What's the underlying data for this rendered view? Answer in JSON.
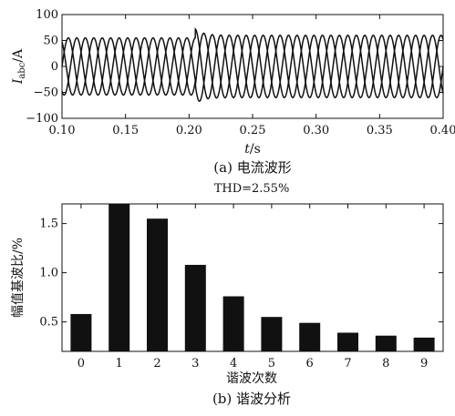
{
  "figure_a": {
    "caption": "(a) 电流波形",
    "ylabel_main": "I",
    "ylabel_sub": "abc",
    "ylabel_unit": "/A",
    "xlabel_main": "t",
    "xlabel_unit": "/s"
  },
  "figure_b": {
    "caption": "(b) 谐波分析",
    "thd_label": "THD=2.55%",
    "ylabel": "幅值基波比/%",
    "xlabel": "谐波次数"
  },
  "chart_data": [
    {
      "type": "line",
      "xlim": [
        0.1,
        0.4
      ],
      "ylim": [
        -100,
        100
      ],
      "xticks": [
        "0.10",
        "0.15",
        "0.20",
        "0.25",
        "0.30",
        "0.35",
        "0.40"
      ],
      "yticks": [
        "100",
        "50",
        "0",
        "−50",
        "−100"
      ],
      "waveform": {
        "phases": 3,
        "frequency_hz": 50,
        "amplitude_before": 55,
        "amplitude_after": 60,
        "switch_time": 0.205,
        "transient_peak": 72
      },
      "grid": false,
      "color": "#111111"
    },
    {
      "type": "bar",
      "categories": [
        "0",
        "1",
        "2",
        "3",
        "4",
        "5",
        "6",
        "7",
        "8",
        "9"
      ],
      "values": [
        0.58,
        1.7,
        1.55,
        1.08,
        0.76,
        0.55,
        0.49,
        0.39,
        0.36,
        0.34
      ],
      "ylim": [
        0.2,
        1.7
      ],
      "yticks": [
        "0.5",
        "1.0",
        "1.5"
      ],
      "grid": false,
      "color": "#111111"
    }
  ]
}
